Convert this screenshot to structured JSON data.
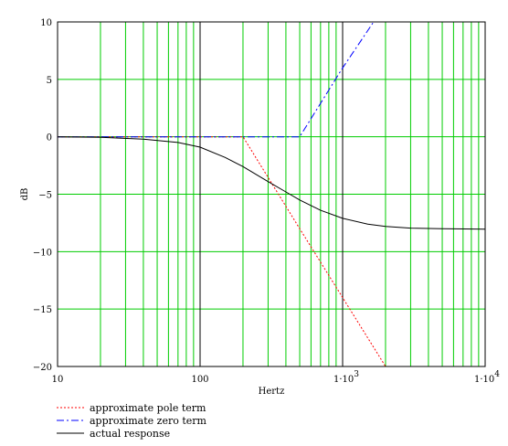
{
  "chart_data": {
    "type": "line",
    "xscale": "log",
    "xlim": [
      10,
      10000
    ],
    "ylim": [
      -20,
      10
    ],
    "xlabel": "Hertz",
    "ylabel": "dB",
    "grid": true,
    "legend_position": "bottom-left",
    "y_ticks": [
      "10",
      "5",
      "0",
      "−5",
      "−10",
      "−15",
      "−20"
    ],
    "y_tick_values": [
      10,
      5,
      0,
      -5,
      -10,
      -15,
      -20
    ],
    "x_ticks": [
      {
        "value": 10,
        "base": "10",
        "exp": ""
      },
      {
        "value": 100,
        "base": "100",
        "exp": ""
      },
      {
        "value": 1000,
        "base": "1·10",
        "exp": "3"
      },
      {
        "value": 10000,
        "base": "1·10",
        "exp": "4"
      }
    ],
    "series": [
      {
        "name": "approximate pole term",
        "color": "#ff0000",
        "style": "dotted",
        "points": [
          [
            10,
            0
          ],
          [
            200,
            0
          ],
          [
            500,
            -8
          ],
          [
            1000,
            -14
          ],
          [
            2000,
            -20
          ]
        ]
      },
      {
        "name": "approximate zero term",
        "color": "#0000ff",
        "style": "dashdot",
        "points": [
          [
            10,
            0
          ],
          [
            500,
            0
          ],
          [
            1000,
            6
          ],
          [
            1650,
            10
          ]
        ]
      },
      {
        "name": "actual response",
        "color": "#000000",
        "style": "solid",
        "points": [
          [
            10,
            0
          ],
          [
            20,
            -0.05
          ],
          [
            40,
            -0.2
          ],
          [
            70,
            -0.5
          ],
          [
            100,
            -0.9
          ],
          [
            150,
            -1.8
          ],
          [
            200,
            -2.6
          ],
          [
            300,
            -3.9
          ],
          [
            400,
            -4.8
          ],
          [
            500,
            -5.5
          ],
          [
            700,
            -6.4
          ],
          [
            1000,
            -7.1
          ],
          [
            1500,
            -7.6
          ],
          [
            2000,
            -7.8
          ],
          [
            3000,
            -7.95
          ],
          [
            5000,
            -8.0
          ],
          [
            10000,
            -8.05
          ]
        ]
      }
    ]
  }
}
